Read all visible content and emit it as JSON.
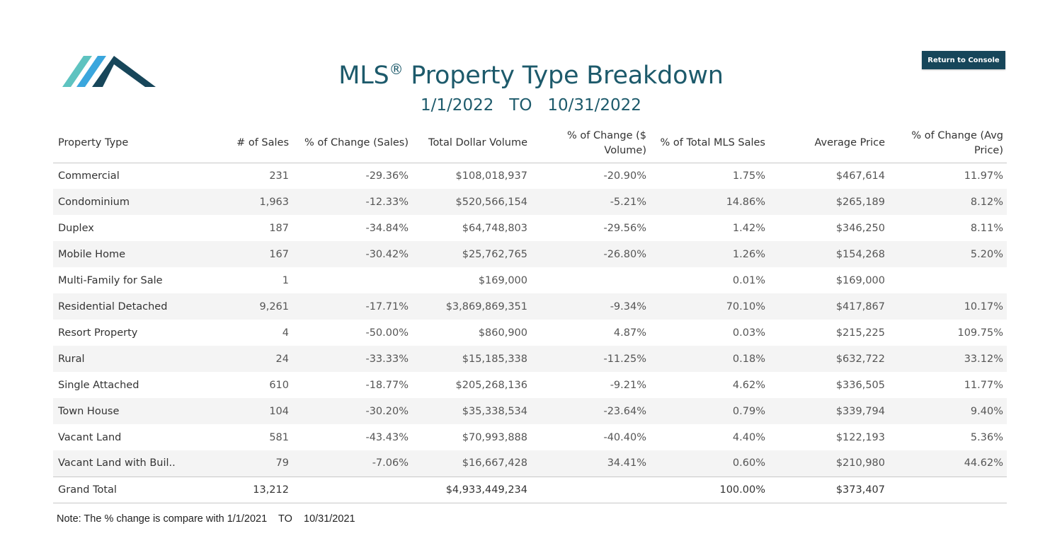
{
  "header": {
    "title": "MLS",
    "title_mark": "®",
    "title_rest": " Property Type Breakdown",
    "date_range": "1/1/2022   TO   10/31/2022",
    "console_button": "Return to Console"
  },
  "table": {
    "columns": [
      "Property Type",
      "# of Sales",
      "% of Change (Sales)",
      "Total Dollar Volume",
      "% of Change ($ Volume)",
      "% of Total MLS Sales",
      "Average Price",
      "% of Change (Avg Price)"
    ],
    "rows": [
      [
        "Commercial",
        "231",
        "-29.36%",
        "$108,018,937",
        "-20.90%",
        "1.75%",
        "$467,614",
        "11.97%"
      ],
      [
        "Condominium",
        "1,963",
        "-12.33%",
        "$520,566,154",
        "-5.21%",
        "14.86%",
        "$265,189",
        "8.12%"
      ],
      [
        "Duplex",
        "187",
        "-34.84%",
        "$64,748,803",
        "-29.56%",
        "1.42%",
        "$346,250",
        "8.11%"
      ],
      [
        "Mobile Home",
        "167",
        "-30.42%",
        "$25,762,765",
        "-26.80%",
        "1.26%",
        "$154,268",
        "5.20%"
      ],
      [
        "Multi-Family for Sale",
        "1",
        "",
        "$169,000",
        "",
        "0.01%",
        "$169,000",
        ""
      ],
      [
        "Residential Detached",
        "9,261",
        "-17.71%",
        "$3,869,869,351",
        "-9.34%",
        "70.10%",
        "$417,867",
        "10.17%"
      ],
      [
        "Resort Property",
        "4",
        "-50.00%",
        "$860,900",
        "4.87%",
        "0.03%",
        "$215,225",
        "109.75%"
      ],
      [
        "Rural",
        "24",
        "-33.33%",
        "$15,185,338",
        "-11.25%",
        "0.18%",
        "$632,722",
        "33.12%"
      ],
      [
        "Single Attached",
        "610",
        "-18.77%",
        "$205,268,136",
        "-9.21%",
        "4.62%",
        "$336,505",
        "11.77%"
      ],
      [
        "Town House",
        "104",
        "-30.20%",
        "$35,338,534",
        "-23.64%",
        "0.79%",
        "$339,794",
        "9.40%"
      ],
      [
        "Vacant Land",
        "581",
        "-43.43%",
        "$70,993,888",
        "-40.40%",
        "4.40%",
        "$122,193",
        "5.36%"
      ],
      [
        "Vacant Land with Buil..",
        "79",
        "-7.06%",
        "$16,667,428",
        "34.41%",
        "0.60%",
        "$210,980",
        "44.62%"
      ]
    ],
    "total": [
      "Grand Total",
      "13,212",
      "",
      "$4,933,449,234",
      "",
      "100.00%",
      "$373,407",
      ""
    ]
  },
  "note": "Note: The % change is compare with 1/1/2021    TO    10/31/2021",
  "colors": {
    "brand_dark": "#1d5a6b",
    "button_bg": "#17465a",
    "logo_light": "#5ec3c0",
    "logo_mid": "#3aa6dd",
    "logo_dark": "#17465a",
    "row_alt": "#f4f4f4"
  },
  "icons": {
    "logo": "roof-logo-icon"
  }
}
